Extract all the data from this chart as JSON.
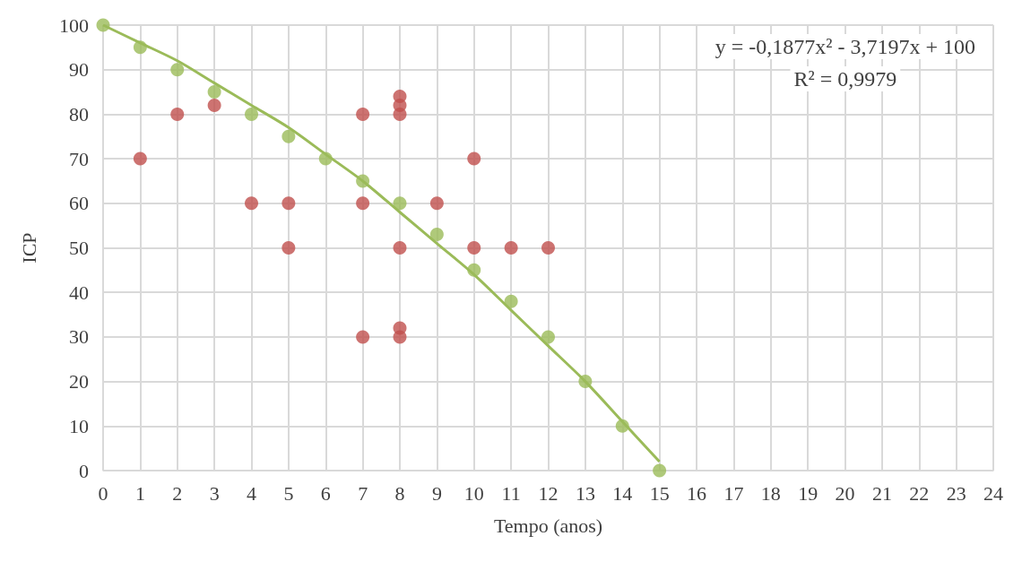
{
  "chart_data": {
    "type": "scatter",
    "xlabel": "Tempo (anos)",
    "ylabel": "ICP",
    "xlim": [
      0,
      24
    ],
    "xticks": [
      0,
      1,
      2,
      3,
      4,
      5,
      6,
      7,
      8,
      9,
      10,
      11,
      12,
      13,
      14,
      15,
      16,
      17,
      18,
      19,
      20,
      21,
      22,
      23,
      24
    ],
    "ylim": [
      0,
      100
    ],
    "yticks": [
      0,
      10,
      20,
      30,
      40,
      50,
      60,
      70,
      80,
      90,
      100
    ],
    "grid": true,
    "marker": "circle",
    "annotations": [
      "y = -0,1877x² - 3,7197x + 100",
      "R² = 0,9979"
    ],
    "series": [
      {
        "color": "#c0504d",
        "x": [
          1,
          2,
          3,
          4,
          5,
          5,
          7,
          7,
          7,
          8,
          8,
          8,
          8,
          8,
          8,
          9,
          10,
          10,
          11,
          12
        ],
        "values": [
          70,
          80,
          82,
          60,
          60,
          50,
          80,
          60,
          30,
          84,
          82,
          80,
          50,
          32,
          30,
          60,
          70,
          50,
          50,
          50
        ]
      },
      {
        "type": "line",
        "color": "#9bbb59",
        "marker": "none",
        "line_style": "solid",
        "x": [
          0,
          1,
          2,
          3,
          4,
          5,
          6,
          7,
          8,
          9,
          10,
          11,
          12,
          13,
          14,
          15
        ],
        "values": [
          100,
          96,
          92,
          87,
          82,
          77,
          71,
          65,
          58,
          51,
          44,
          36,
          28,
          20,
          11,
          2
        ]
      },
      {
        "color": "#9bbb59",
        "x": [
          0,
          1,
          2,
          3,
          4,
          5,
          6,
          7,
          8,
          9,
          10,
          11,
          12,
          13,
          14,
          15
        ],
        "values": [
          100,
          95,
          90,
          85,
          80,
          75,
          70,
          65,
          60,
          53,
          45,
          38,
          30,
          20,
          10,
          0
        ]
      }
    ]
  }
}
